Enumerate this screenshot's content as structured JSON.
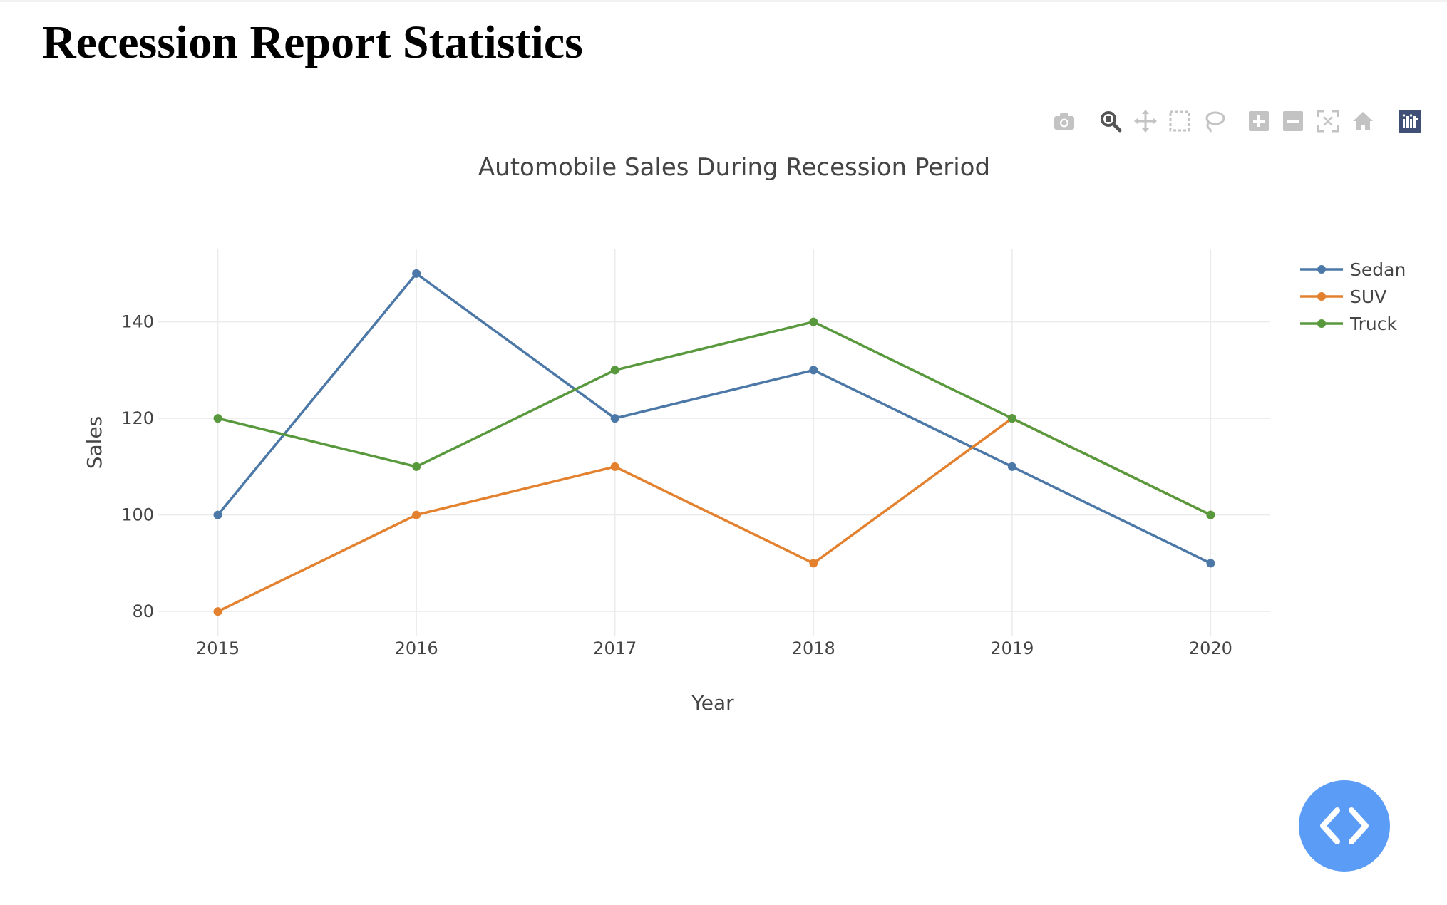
{
  "page": {
    "title": "Recession Report Statistics"
  },
  "modebar": {
    "buttons": [
      {
        "icon": "camera-icon",
        "name": "download-plot-button"
      },
      {
        "icon": "zoom-icon",
        "name": "zoom-button",
        "active": true
      },
      {
        "icon": "pan-icon",
        "name": "pan-button"
      },
      {
        "icon": "box-select-icon",
        "name": "box-select-button"
      },
      {
        "icon": "lasso-select-icon",
        "name": "lasso-select-button"
      },
      {
        "icon": "zoom-in-icon",
        "name": "zoom-in-button"
      },
      {
        "icon": "zoom-out-icon",
        "name": "zoom-out-button"
      },
      {
        "icon": "autoscale-icon",
        "name": "autoscale-button"
      },
      {
        "icon": "home-icon",
        "name": "reset-axes-button"
      },
      {
        "icon": "plotly-logo-icon",
        "name": "plotly-logo-link"
      }
    ]
  },
  "chart_data": {
    "type": "line",
    "title": "Automobile Sales During Recession Period",
    "xlabel": "Year",
    "ylabel": "Sales",
    "x": [
      2015,
      2016,
      2017,
      2018,
      2019,
      2020
    ],
    "xlim": [
      2014.7,
      2020.3
    ],
    "ylim": [
      75,
      155
    ],
    "yticks": [
      80,
      100,
      120,
      140
    ],
    "grid": true,
    "legend": "top-right",
    "series": [
      {
        "name": "Sedan",
        "color": "#4c78a8",
        "values": [
          100,
          150,
          120,
          130,
          110,
          90
        ]
      },
      {
        "name": "SUV",
        "color": "#e3812f",
        "values": [
          80,
          100,
          110,
          90,
          120,
          100
        ]
      },
      {
        "name": "Truck",
        "color": "#59993d",
        "values": [
          120,
          110,
          130,
          140,
          120,
          100
        ]
      }
    ]
  },
  "fab": {
    "icon": "code-icon"
  }
}
